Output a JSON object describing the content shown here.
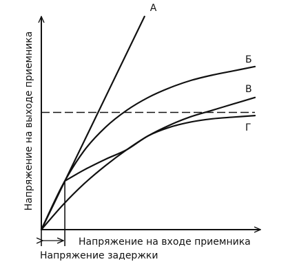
{
  "chart_data": {
    "type": "line",
    "title": "",
    "xlabel": "Напряжение на входе приемника",
    "ylabel": "Напряжение на выходе приемника",
    "delay_label": "Напряжение задержки",
    "xlim": [
      0,
      1
    ],
    "ylim": [
      0,
      1
    ],
    "grid": false,
    "legend": "curve-end labels",
    "delay_x": 0.11,
    "threshold_y": 0.55,
    "series": [
      {
        "name": "А",
        "x": [
          0,
          0.483
        ],
        "y": [
          0,
          1.0
        ]
      },
      {
        "name": "Б",
        "x": [
          0,
          0.1,
          0.2,
          0.3,
          0.4,
          0.5,
          0.6,
          0.7,
          0.8,
          0.9,
          1.0
        ],
        "y": [
          0,
          0.21,
          0.37,
          0.48,
          0.56,
          0.62,
          0.665,
          0.7,
          0.725,
          0.745,
          0.765
        ]
      },
      {
        "name": "В",
        "x": [
          0,
          0.1,
          0.2,
          0.3,
          0.4,
          0.5,
          0.6,
          0.7,
          0.8,
          0.9,
          1.0
        ],
        "y": [
          0,
          0.115,
          0.215,
          0.3,
          0.375,
          0.44,
          0.49,
          0.53,
          0.56,
          0.59,
          0.62
        ]
      },
      {
        "name": "Г",
        "x": [
          0,
          0.11,
          0.2,
          0.3,
          0.4,
          0.5,
          0.6,
          0.7,
          0.8,
          0.9,
          1.0
        ],
        "y": [
          0,
          0.228,
          0.28,
          0.33,
          0.375,
          0.44,
          0.48,
          0.505,
          0.52,
          0.528,
          0.535
        ]
      }
    ]
  }
}
